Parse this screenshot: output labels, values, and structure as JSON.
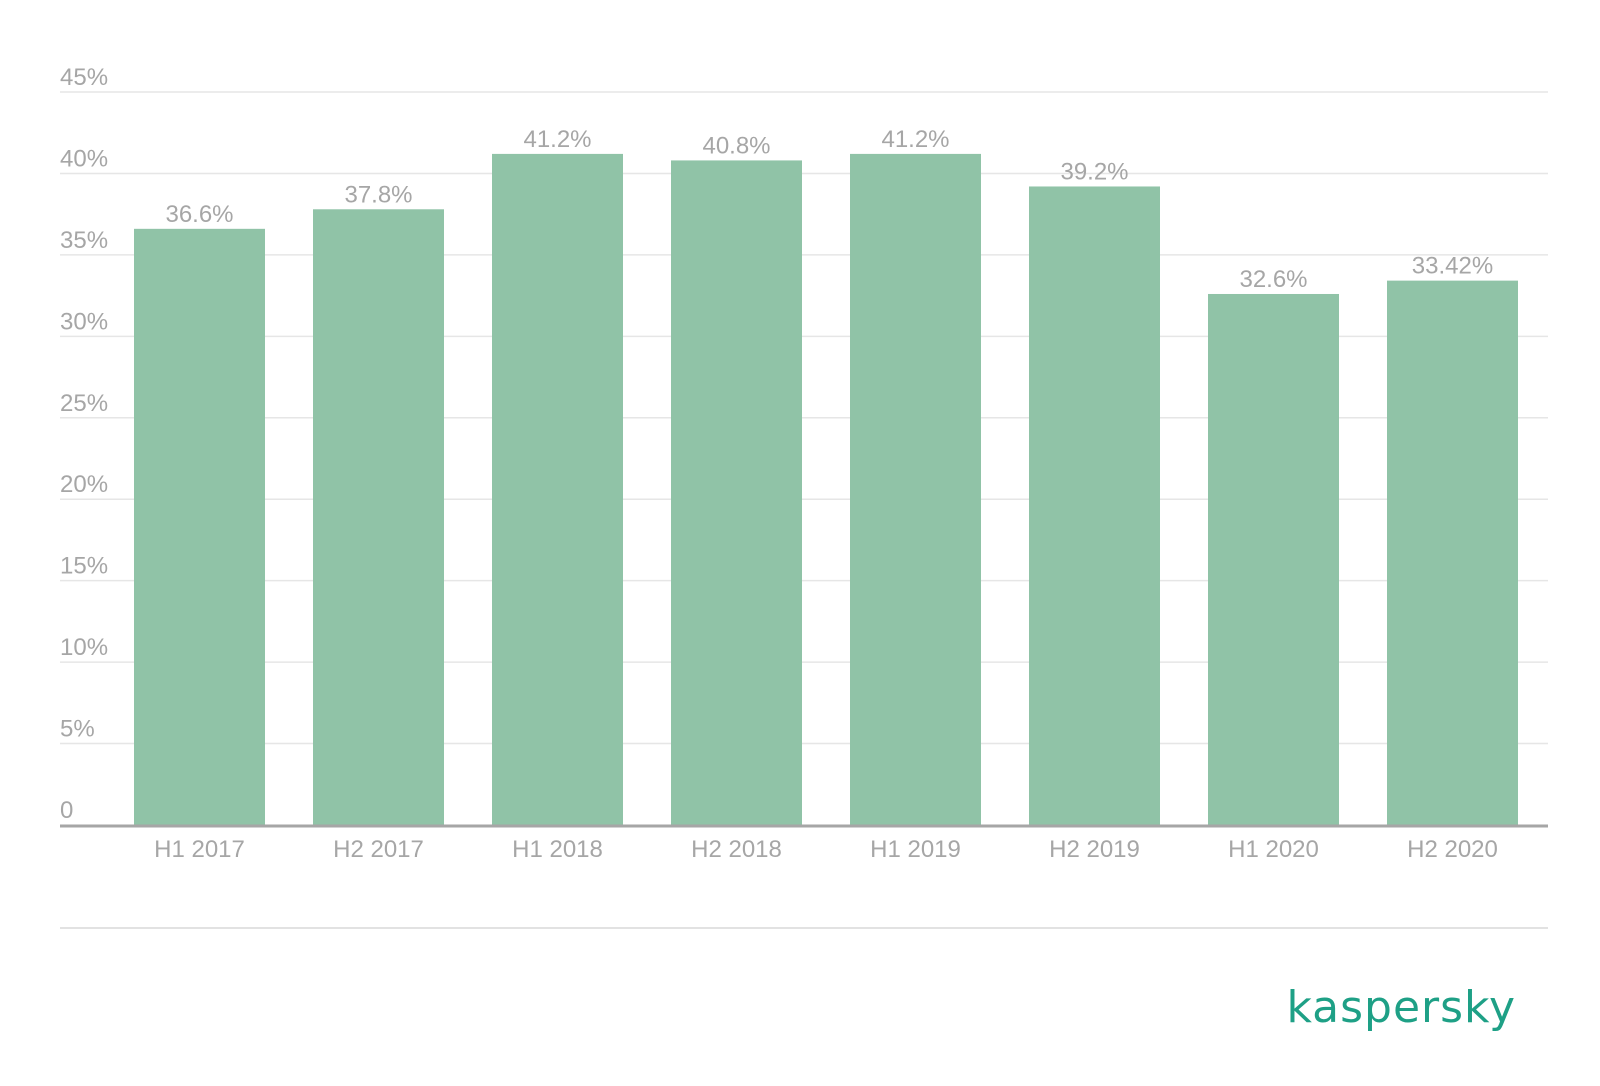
{
  "chart_data": {
    "type": "bar",
    "categories": [
      "H1 2017",
      "H2 2017",
      "H1 2018",
      "H2 2018",
      "H1 2019",
      "H2 2019",
      "H1 2020",
      "H2 2020"
    ],
    "values": [
      36.6,
      37.8,
      41.2,
      40.8,
      41.2,
      39.2,
      32.6,
      33.42
    ],
    "data_labels": [
      "36.6%",
      "37.8%",
      "41.2%",
      "40.8%",
      "41.2%",
      "39.2%",
      "32.6%",
      "33.42%"
    ],
    "yticks": [
      0,
      5,
      10,
      15,
      20,
      25,
      30,
      35,
      40,
      45
    ],
    "ytick_labels": [
      "0",
      "5%",
      "10%",
      "15%",
      "20%",
      "25%",
      "30%",
      "35%",
      "40%",
      "45%"
    ],
    "ylim": [
      0,
      45
    ],
    "grid": true,
    "title": "",
    "xlabel": "",
    "ylabel": "",
    "bar_color": "#90c3a7",
    "grid_color": "#e6e6e6",
    "axis_color": "#a6a6a6",
    "label_color": "#a6a6a6"
  },
  "brand": {
    "name": "kaspersky",
    "color": "#1ea086"
  }
}
